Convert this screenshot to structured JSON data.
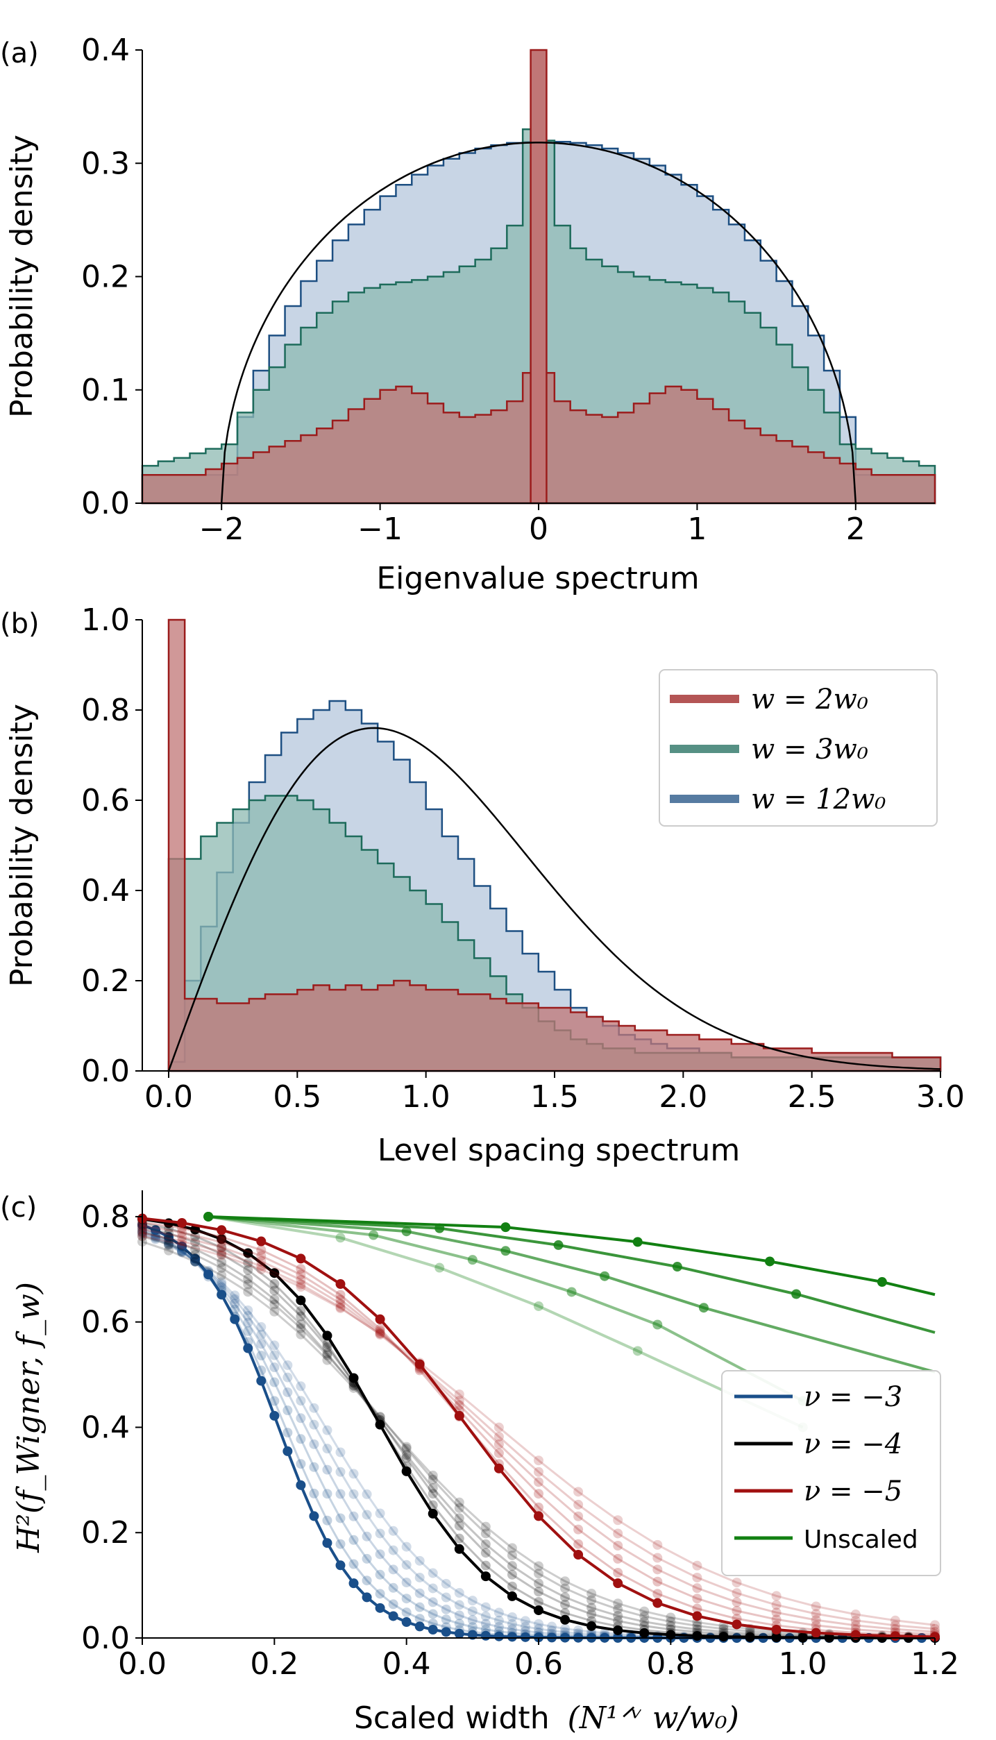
{
  "colors": {
    "red": "#9b1c1c",
    "red_fill": "#c07676",
    "teal": "#1d6b5b",
    "teal_fill": "#8dbab2",
    "blue": "#1d4f82",
    "blue_fill": "#b5c7dc",
    "black": "#000000",
    "green": "#128012",
    "scaled_blue": "#1a4f8a",
    "scaled_red": "#a01010"
  },
  "chart_data": [
    {
      "panel_label": "(a)",
      "type": "histogram",
      "xlabel": "Eigenvalue spectrum",
      "ylabel": "Probability density",
      "xlim": [
        -2.5,
        2.5
      ],
      "ylim": [
        0.0,
        0.4
      ],
      "xticks": [
        "−2",
        "−1",
        "0",
        "1",
        "2"
      ],
      "yticks": [
        "0.0",
        "0.1",
        "0.2",
        "0.3",
        "0.4"
      ],
      "bin_width": 0.1,
      "x_start": -2.5,
      "series": [
        {
          "key": "w12",
          "values": [
            0.025,
            0.025,
            0.025,
            0.025,
            0.025,
            0.025,
            0.076,
            0.117,
            0.148,
            0.174,
            0.196,
            0.214,
            0.232,
            0.246,
            0.259,
            0.271,
            0.281,
            0.29,
            0.298,
            0.304,
            0.309,
            0.313,
            0.316,
            0.318,
            0.319,
            0.32,
            0.319,
            0.318,
            0.316,
            0.313,
            0.309,
            0.304,
            0.298,
            0.29,
            0.281,
            0.271,
            0.259,
            0.246,
            0.232,
            0.214,
            0.196,
            0.174,
            0.148,
            0.117,
            0.076,
            0.025,
            0.025,
            0.025,
            0.025,
            0.025
          ]
        },
        {
          "key": "w3",
          "values": [
            0.033,
            0.037,
            0.04,
            0.044,
            0.048,
            0.052,
            0.08,
            0.1,
            0.12,
            0.14,
            0.155,
            0.168,
            0.178,
            0.186,
            0.19,
            0.193,
            0.195,
            0.197,
            0.2,
            0.204,
            0.209,
            0.215,
            0.225,
            0.245,
            0.33,
            0.32,
            0.245,
            0.225,
            0.215,
            0.209,
            0.204,
            0.2,
            0.197,
            0.195,
            0.193,
            0.19,
            0.186,
            0.178,
            0.168,
            0.155,
            0.14,
            0.12,
            0.1,
            0.08,
            0.052,
            0.048,
            0.044,
            0.04,
            0.037,
            0.033
          ]
        },
        {
          "key": "w2",
          "values": [
            0.025,
            0.025,
            0.025,
            0.025,
            0.03,
            0.035,
            0.04,
            0.045,
            0.05,
            0.055,
            0.06,
            0.066,
            0.073,
            0.083,
            0.092,
            0.1,
            0.103,
            0.097,
            0.088,
            0.08,
            0.076,
            0.078,
            0.082,
            0.09,
            0.115,
            0.115,
            0.09,
            0.082,
            0.078,
            0.076,
            0.08,
            0.088,
            0.097,
            0.103,
            0.1,
            0.092,
            0.083,
            0.073,
            0.066,
            0.06,
            0.055,
            0.05,
            0.045,
            0.04,
            0.035,
            0.03,
            0.025,
            0.025,
            0.025,
            0.025
          ]
        }
      ],
      "spike": {
        "x": 0.0,
        "value": 0.4
      },
      "reference_curve": "semicircle"
    },
    {
      "panel_label": "(b)",
      "type": "histogram",
      "xlabel": "Level spacing spectrum",
      "ylabel": "Probability density",
      "xlim": [
        0.0,
        3.0
      ],
      "ylim": [
        0.0,
        1.0
      ],
      "xticks": [
        "0.0",
        "0.5",
        "1.0",
        "1.5",
        "2.0",
        "2.5",
        "3.0"
      ],
      "yticks": [
        "0.0",
        "0.2",
        "0.4",
        "0.6",
        "0.8",
        "1.0"
      ],
      "bin_width": 0.0625,
      "x_start": 0.0,
      "series": [
        {
          "key": "w12",
          "values": [
            0.02,
            0.2,
            0.32,
            0.44,
            0.55,
            0.64,
            0.7,
            0.75,
            0.78,
            0.8,
            0.82,
            0.8,
            0.77,
            0.73,
            0.69,
            0.64,
            0.58,
            0.52,
            0.47,
            0.41,
            0.36,
            0.31,
            0.26,
            0.22,
            0.18,
            0.14,
            0.12,
            0.1,
            0.08,
            0.07,
            0.06,
            0.05,
            0.05,
            0.04,
            0.04,
            0.03,
            0.03,
            0.03,
            0.03,
            0.03,
            0.03,
            0.03,
            0.03,
            0.03,
            0.03,
            0.03,
            0.03,
            0.03
          ]
        },
        {
          "key": "w3",
          "values": [
            0.47,
            0.47,
            0.52,
            0.55,
            0.58,
            0.6,
            0.61,
            0.61,
            0.6,
            0.58,
            0.55,
            0.52,
            0.49,
            0.46,
            0.43,
            0.4,
            0.37,
            0.33,
            0.29,
            0.25,
            0.21,
            0.17,
            0.14,
            0.11,
            0.09,
            0.07,
            0.06,
            0.05,
            0.05,
            0.04,
            0.04,
            0.04,
            0.04,
            0.04,
            0.04,
            0.03,
            0.03,
            0.03,
            0.03,
            0.03,
            0.03,
            0.03,
            0.03,
            0.03,
            0.03,
            0.03,
            0.03,
            0.03
          ]
        },
        {
          "key": "w2",
          "values": [
            1.0,
            0.16,
            0.16,
            0.15,
            0.15,
            0.16,
            0.17,
            0.17,
            0.18,
            0.19,
            0.18,
            0.19,
            0.18,
            0.19,
            0.2,
            0.19,
            0.18,
            0.18,
            0.17,
            0.17,
            0.16,
            0.15,
            0.15,
            0.14,
            0.14,
            0.13,
            0.12,
            0.11,
            0.1,
            0.09,
            0.09,
            0.08,
            0.08,
            0.07,
            0.07,
            0.06,
            0.06,
            0.05,
            0.05,
            0.05,
            0.04,
            0.04,
            0.04,
            0.04,
            0.04,
            0.03,
            0.03,
            0.03
          ]
        }
      ],
      "reference_curve": "wigner_surmise",
      "legend": [
        {
          "key": "w2",
          "label": "w = 2w₀"
        },
        {
          "key": "w3",
          "label": "w = 3w₀"
        },
        {
          "key": "w12",
          "label": "w = 12w₀"
        }
      ]
    },
    {
      "panel_label": "(c)",
      "type": "line",
      "xlabel": "Scaled width",
      "xlabel_math": "(N¹ᐟᵛ w/w₀)",
      "ylabel": "H²(f_Wigner, f_w)",
      "xlim": [
        0.0,
        1.2
      ],
      "ylim": [
        0.0,
        0.85
      ],
      "xticks": [
        "0.0",
        "0.2",
        "0.4",
        "0.6",
        "0.8",
        "1.0",
        "1.2"
      ],
      "yticks": [
        "0.0",
        "0.2",
        "0.4",
        "0.6",
        "0.8"
      ],
      "legend": [
        {
          "key": "nu3",
          "label": "ν = −3"
        },
        {
          "key": "nu4",
          "label": "ν = −4"
        },
        {
          "key": "nu5",
          "label": "ν = −5"
        },
        {
          "key": "unscaled",
          "label": "Unscaled"
        }
      ],
      "families": [
        {
          "key": "nu3",
          "midpoints": [
            0.205,
            0.215,
            0.23,
            0.245,
            0.26,
            0.275
          ],
          "x_step": 0.02
        },
        {
          "key": "nu4",
          "midpoints": [
            0.36,
            0.36,
            0.365,
            0.365,
            0.37,
            0.37
          ],
          "x_step": 0.04
        },
        {
          "key": "nu5",
          "midpoints": [
            0.49,
            0.49,
            0.5,
            0.51,
            0.52,
            0.535
          ],
          "x_step": 0.06
        }
      ],
      "unscaled_series": [
        {
          "x": [
            0.1,
            0.55,
            0.75,
            0.95,
            1.12,
            1.2
          ],
          "y": [
            0.8,
            0.78,
            0.752,
            0.715,
            0.676,
            0.652
          ]
        },
        {
          "x": [
            0.1,
            0.45,
            0.63,
            0.81,
            0.99,
            1.2
          ],
          "y": [
            0.8,
            0.778,
            0.746,
            0.705,
            0.653,
            0.58
          ]
        },
        {
          "x": [
            0.1,
            0.4,
            0.55,
            0.7,
            0.85,
            1.2
          ],
          "y": [
            0.8,
            0.772,
            0.735,
            0.687,
            0.627,
            0.505
          ]
        },
        {
          "x": [
            0.1,
            0.35,
            0.5,
            0.65,
            0.78,
            1.0
          ],
          "y": [
            0.8,
            0.765,
            0.718,
            0.657,
            0.595,
            0.45
          ]
        },
        {
          "x": [
            0.1,
            0.3,
            0.45,
            0.6,
            0.75,
            1.0
          ],
          "y": [
            0.8,
            0.76,
            0.703,
            0.63,
            0.545,
            0.4
          ]
        }
      ]
    }
  ]
}
